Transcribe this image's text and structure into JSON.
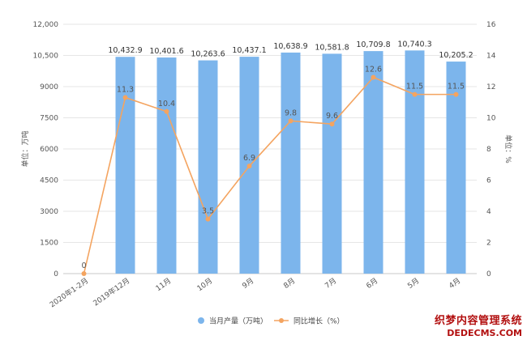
{
  "chart_data": {
    "type": "bar+line",
    "categories": [
      "2020年1-2月",
      "2019年12月",
      "11月",
      "10月",
      "9月",
      "8月",
      "7月",
      "6月",
      "5月",
      "4月"
    ],
    "series": [
      {
        "name": "当月产量（万吨）",
        "type": "bar",
        "axis": "left",
        "color": "#7cb5ec",
        "values": [
          null,
          10432.9,
          10401.6,
          10263.6,
          10437.1,
          10638.9,
          10581.8,
          10709.8,
          10740.3,
          10205.2
        ],
        "labels": [
          "",
          "10,432.9",
          "10,401.6",
          "10,263.6",
          "10,437.1",
          "10,638.9",
          "10,581.8",
          "10,709.8",
          "10,740.3",
          "10,205.2"
        ]
      },
      {
        "name": "同比增长（%）",
        "type": "line",
        "axis": "right",
        "color": "#f4a460",
        "values": [
          0,
          11.3,
          10.4,
          3.5,
          6.9,
          9.8,
          9.6,
          12.6,
          11.5,
          11.5
        ],
        "labels": [
          "0",
          "11.3",
          "10.4",
          "3.5",
          "6.9",
          "9.8",
          "9.6",
          "12.6",
          "11.5",
          "11.5"
        ]
      }
    ],
    "left_axis": {
      "label": "单位：万吨",
      "range": [
        0,
        12000
      ],
      "ticks": [
        0,
        1500,
        3000,
        4500,
        6000,
        7500,
        9000,
        10500,
        12000
      ],
      "tick_labels": [
        "0",
        "1500",
        "3000",
        "4500",
        "6000",
        "7500",
        "9000",
        "10,500",
        "12,000"
      ]
    },
    "right_axis": {
      "label": "单位：%",
      "range": [
        0,
        16
      ],
      "ticks": [
        0,
        2,
        4,
        6,
        8,
        10,
        12,
        14,
        16
      ],
      "tick_labels": [
        "0",
        "2",
        "4",
        "6",
        "8",
        "10",
        "12",
        "14",
        "16"
      ]
    },
    "grid": true,
    "legend_position": "bottom-center"
  },
  "watermark": {
    "line1": "织梦内容管理系统",
    "line2": "DEDECMS.COM"
  }
}
